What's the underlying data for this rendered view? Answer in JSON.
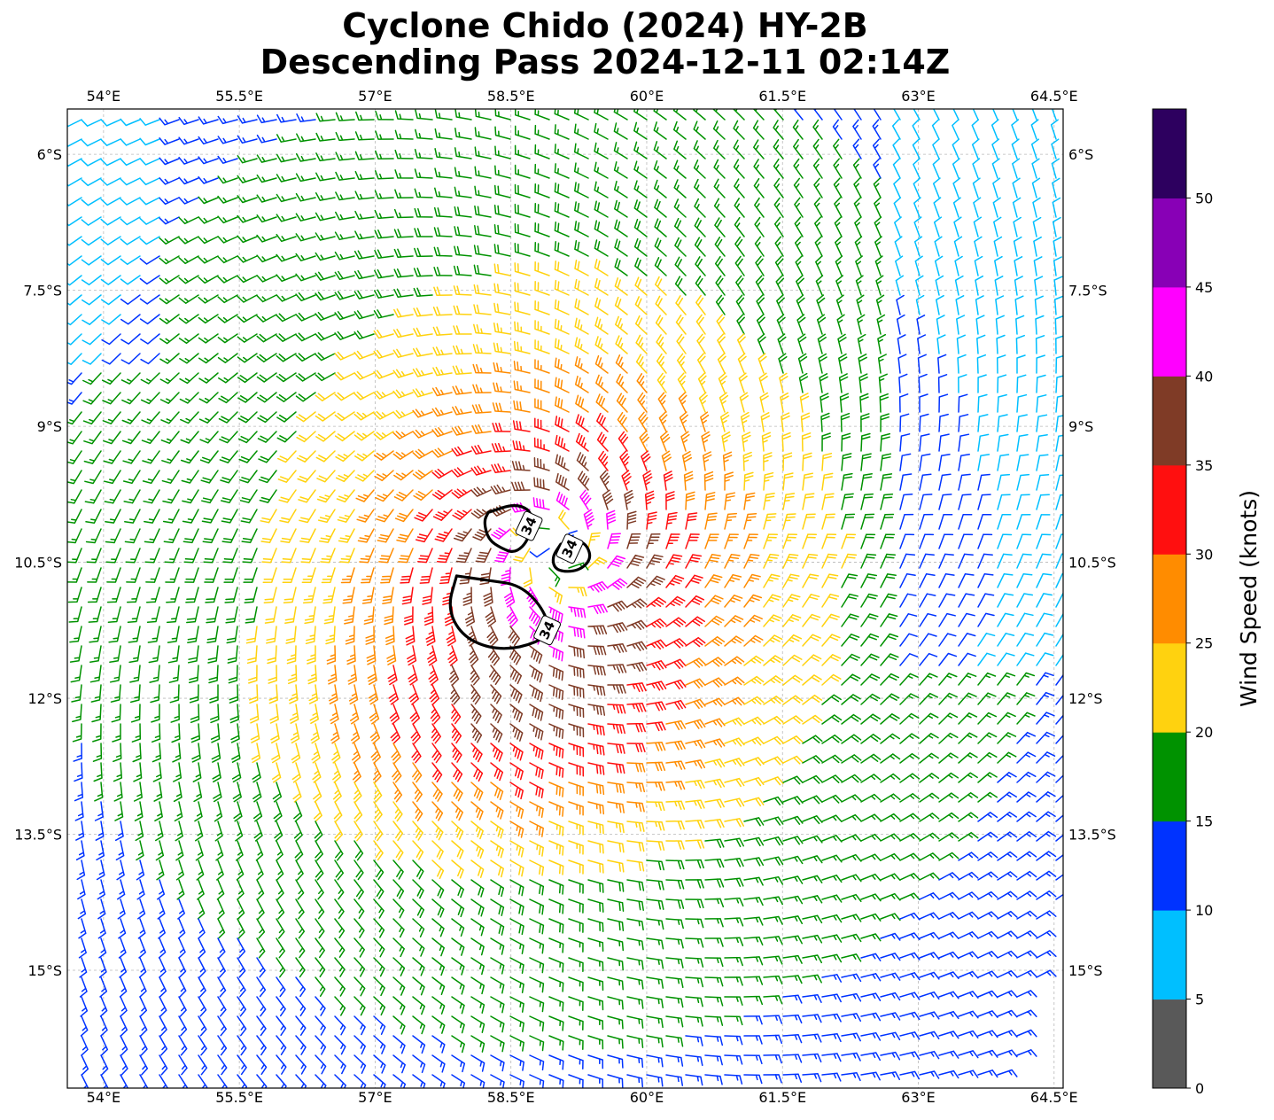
{
  "title_line1": "Cyclone Chido (2024) HY-2B",
  "title_line2": "Descending Pass 2024-12-11 02:14Z",
  "map": {
    "lon_range": [
      53.6,
      64.6
    ],
    "lat_range": [
      -16.3,
      -5.5
    ],
    "lon_ticks": [
      {
        "value": 54.0,
        "label": "54°E"
      },
      {
        "value": 55.5,
        "label": "55.5°E"
      },
      {
        "value": 57.0,
        "label": "57°E"
      },
      {
        "value": 58.5,
        "label": "58.5°E"
      },
      {
        "value": 60.0,
        "label": "60°E"
      },
      {
        "value": 61.5,
        "label": "61.5°E"
      },
      {
        "value": 63.0,
        "label": "63°E"
      },
      {
        "value": 64.5,
        "label": "64.5°E"
      }
    ],
    "lat_ticks": [
      {
        "value": -6.0,
        "label": "6°S"
      },
      {
        "value": -7.5,
        "label": "7.5°S"
      },
      {
        "value": -9.0,
        "label": "9°S"
      },
      {
        "value": -10.5,
        "label": "10.5°S"
      },
      {
        "value": -12.0,
        "label": "12°S"
      },
      {
        "value": -13.5,
        "label": "13.5°S"
      },
      {
        "value": -15.0,
        "label": "15°S"
      }
    ],
    "gridlines": true,
    "storm_center": {
      "lon": 59.0,
      "lat": -10.4
    },
    "contour_label": "34",
    "contour_labels": [
      {
        "lon": 58.7,
        "lat": -10.1,
        "text": "34"
      },
      {
        "lon": 59.15,
        "lat": -10.35,
        "text": "34"
      },
      {
        "lon": 58.9,
        "lat": -11.25,
        "text": "34"
      }
    ],
    "contour_34kt": [
      [
        {
          "lon": 58.25,
          "lat": -9.95
        },
        {
          "lon": 58.55,
          "lat": -9.85
        },
        {
          "lon": 58.75,
          "lat": -9.95
        },
        {
          "lon": 58.7,
          "lat": -10.25
        },
        {
          "lon": 58.55,
          "lat": -10.4
        },
        {
          "lon": 58.4,
          "lat": -10.35
        },
        {
          "lon": 58.25,
          "lat": -10.25
        },
        {
          "lon": 58.2,
          "lat": -10.05
        }
      ],
      [
        {
          "lon": 59.05,
          "lat": -10.3
        },
        {
          "lon": 59.3,
          "lat": -10.25
        },
        {
          "lon": 59.4,
          "lat": -10.45
        },
        {
          "lon": 59.25,
          "lat": -10.6
        },
        {
          "lon": 59.0,
          "lat": -10.6
        },
        {
          "lon": 58.95,
          "lat": -10.45
        }
      ],
      [
        {
          "lon": 57.9,
          "lat": -10.65
        },
        {
          "lon": 58.25,
          "lat": -10.7
        },
        {
          "lon": 58.6,
          "lat": -10.75
        },
        {
          "lon": 58.85,
          "lat": -11.0
        },
        {
          "lon": 58.95,
          "lat": -11.3
        },
        {
          "lon": 58.6,
          "lat": -11.45
        },
        {
          "lon": 58.25,
          "lat": -11.45
        },
        {
          "lon": 57.95,
          "lat": -11.3
        },
        {
          "lon": 57.8,
          "lat": -11.0
        }
      ]
    ]
  },
  "colorbar": {
    "label": "Wind Speed (knots)",
    "bins": [
      {
        "min": 0,
        "max": 5,
        "color": "#595959"
      },
      {
        "min": 5,
        "max": 10,
        "color": "#00bfff"
      },
      {
        "min": 10,
        "max": 15,
        "color": "#0033ff"
      },
      {
        "min": 15,
        "max": 20,
        "color": "#009200"
      },
      {
        "min": 20,
        "max": 25,
        "color": "#ffd20f"
      },
      {
        "min": 25,
        "max": 30,
        "color": "#ff8c00"
      },
      {
        "min": 30,
        "max": 35,
        "color": "#ff0f0f"
      },
      {
        "min": 35,
        "max": 40,
        "color": "#7f3b26"
      },
      {
        "min": 40,
        "max": 45,
        "color": "#ff00ff"
      },
      {
        "min": 45,
        "max": 50,
        "color": "#8800b6"
      },
      {
        "min": 50,
        "max": 55,
        "color": "#2d005f"
      }
    ],
    "tick_labels": [
      "0",
      "5",
      "10",
      "15",
      "20",
      "25",
      "30",
      "35",
      "40",
      "45",
      "50"
    ]
  }
}
